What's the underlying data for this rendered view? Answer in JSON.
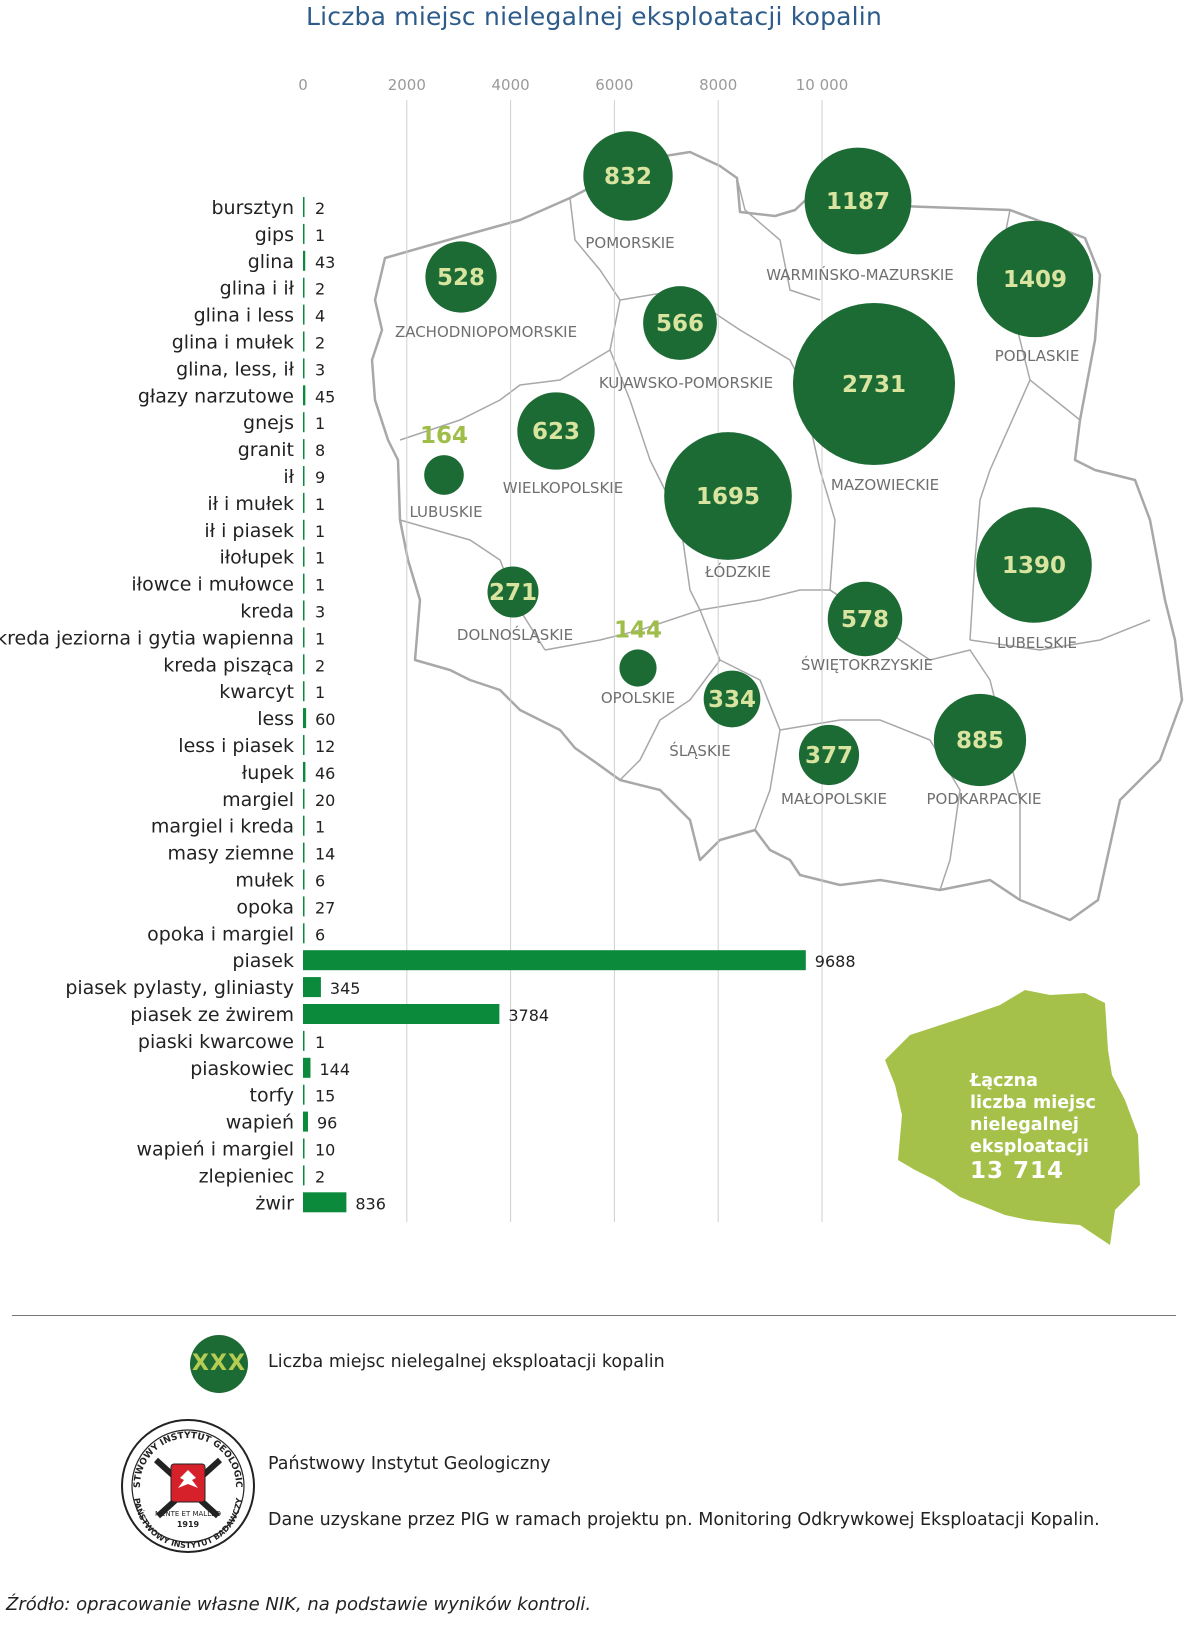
{
  "title": "Liczba miejsc nielegalnej eksploatacji kopalin",
  "colors": {
    "bar": "#0a8a3a",
    "circle": "#1d6b34",
    "circle_text": "#d9e4a0",
    "highlight": "#9fbd49",
    "border": "#a8a8a8",
    "grid": "#cfcfcf"
  },
  "chart_data": [
    {
      "type": "bar",
      "orientation": "horizontal",
      "xlim": [
        0,
        10000
      ],
      "x_ticks": [
        "0",
        "2000",
        "4000",
        "6000",
        "8000",
        "10 000"
      ],
      "x_tick_values": [
        0,
        2000,
        4000,
        6000,
        8000,
        10000
      ],
      "grid": true,
      "categories": [
        "bursztyn",
        "gips",
        "glina",
        "glina i ił",
        "glina i less",
        "glina i mułek",
        "glina, less, ił",
        "głazy narzutowe",
        "gnejs",
        "granit",
        "ił",
        "ił i mułek",
        "ił i piasek",
        "iłołupek",
        "iłowce i mułowce",
        "kreda",
        "kreda jeziorna i gytia wapienna",
        "kreda pisząca",
        "kwarcyt",
        "less",
        "less i piasek",
        "łupek",
        "margiel",
        "margiel i kreda",
        "masy ziemne",
        "mułek",
        "opoka",
        "opoka i margiel",
        "piasek",
        "piasek pylasty, gliniasty",
        "piasek ze żwirem",
        "piaski kwarcowe",
        "piaskowiec",
        "torfy",
        "wapień",
        "wapień i margiel",
        "zlepieniec",
        "żwir"
      ],
      "values": [
        2,
        1,
        43,
        2,
        4,
        2,
        3,
        45,
        1,
        8,
        9,
        1,
        1,
        1,
        1,
        3,
        1,
        2,
        1,
        60,
        12,
        46,
        20,
        1,
        14,
        6,
        27,
        6,
        9688,
        345,
        3784,
        1,
        144,
        15,
        96,
        10,
        2,
        836
      ],
      "value_labels": [
        "2",
        "1",
        "43",
        "2",
        "4",
        "2",
        "3",
        "45",
        "1",
        "8",
        "9",
        "1",
        "1",
        "1",
        "1",
        "3",
        "1",
        "2",
        "1",
        "60",
        "12",
        "46",
        "20",
        "1",
        "14",
        "6",
        "27",
        "6",
        "9688",
        "345",
        "3784",
        "1",
        "144",
        "15",
        "96",
        "10",
        "2",
        "836"
      ]
    },
    {
      "type": "map",
      "regions": [
        {
          "name": "ZACHODNIOPOMORSKIE",
          "value": 528,
          "label": "528"
        },
        {
          "name": "POMORSKIE",
          "value": 832,
          "label": "832"
        },
        {
          "name": "WARMIŃSKO-MAZURSKIE",
          "value": 1187,
          "label": "1187"
        },
        {
          "name": "PODLASKIE",
          "value": 1409,
          "label": "1409"
        },
        {
          "name": "KUJAWSKO-POMORSKIE",
          "value": 566,
          "label": "566"
        },
        {
          "name": "MAZOWIECKIE",
          "value": 2731,
          "label": "2731"
        },
        {
          "name": "LUBUSKIE",
          "value": 164,
          "label": "164"
        },
        {
          "name": "WIELKOPOLSKIE",
          "value": 623,
          "label": "623"
        },
        {
          "name": "ŁÓDZKIE",
          "value": 1695,
          "label": "1695"
        },
        {
          "name": "LUBELSKIE",
          "value": 1390,
          "label": "1390"
        },
        {
          "name": "DOLNOŚLĄSKIE",
          "value": 271,
          "label": "271"
        },
        {
          "name": "ŚWIĘTOKRZYSKIE",
          "value": 578,
          "label": "578"
        },
        {
          "name": "OPOLSKIE",
          "value": 144,
          "label": "144"
        },
        {
          "name": "ŚLĄSKIE",
          "value": 334,
          "label": "334"
        },
        {
          "name": "MAŁOPOLSKIE",
          "value": 377,
          "label": "377"
        },
        {
          "name": "PODKARPACKIE",
          "value": 885,
          "label": "885"
        }
      ]
    }
  ],
  "total": {
    "lines": [
      "Łączna",
      "liczba miejsc",
      "nielegalnej",
      "eksploatacji"
    ],
    "value": "13 714"
  },
  "legend": {
    "symbol": "XXX",
    "text": "Liczba miejsc nielegalnej eksploatacji kopalin"
  },
  "source": {
    "logo_text_top": "PAŃSTWOWY INSTYTUT GEOLOGICZNY",
    "logo_text_bottom": "PAŃSTWOWY INSTYTUT BADAWCZY",
    "logo_motto": "MENTE ET MALLEO",
    "logo_year": "1919",
    "institute": "Państwowy Instytut Geologiczny",
    "description": "Dane uzyskane przez PIG w ramach projektu pn. Monitoring Odkrywkowej Eksploatacji Kopalin."
  },
  "footnote": "Źródło: opracowanie własne NIK, na podstawie wyników kontroli."
}
